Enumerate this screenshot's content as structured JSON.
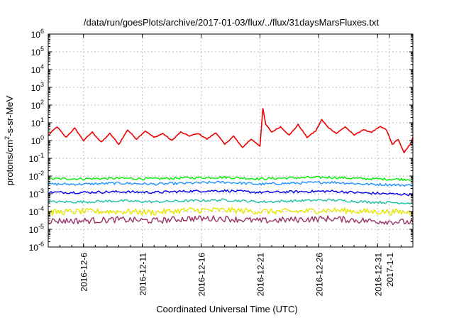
{
  "chart_data": {
    "type": "line",
    "title": "/data/run/goesPlots/archive/2017-01-03/flux/../flux/31daysMarsFluxes.txt",
    "xlabel": "Coordinated Universal Time (UTC)",
    "ylabel": {
      "prefix": "protons/cm",
      "sup": "2",
      "suffix": "-s-sr-MeV"
    },
    "x_start": "2016-12-03T00:00",
    "x_end": "2017-01-03T00:00",
    "x_ticks": [
      {
        "date": "2016-12-06",
        "label": "2016-12-6"
      },
      {
        "date": "2016-12-11",
        "label": "2016-12-11"
      },
      {
        "date": "2016-12-16",
        "label": "2016-12-16"
      },
      {
        "date": "2016-12-21",
        "label": "2016-12-21"
      },
      {
        "date": "2016-12-26",
        "label": "2016-12-26"
      },
      {
        "date": "2016-12-31",
        "label": "2016-12-31"
      },
      {
        "date": "2017-01-01",
        "label": "2017-1-1"
      }
    ],
    "y_scale": "log",
    "ylim_exponents": [
      -6,
      6
    ],
    "y_ticks": [
      {
        "base": "10",
        "exp": "-6",
        "value_exp": -6
      },
      {
        "base": "10",
        "exp": "-5",
        "value_exp": -5
      },
      {
        "base": "10",
        "exp": "-4",
        "value_exp": -4
      },
      {
        "base": "10",
        "exp": "-3",
        "value_exp": -3
      },
      {
        "base": "10",
        "exp": "-2",
        "value_exp": -2
      },
      {
        "base": "10",
        "exp": "-1",
        "value_exp": -1
      },
      {
        "base": "10",
        "exp": "0",
        "value_exp": 0
      },
      {
        "base": "10",
        "exp": "1",
        "value_exp": 1
      },
      {
        "base": "10",
        "exp": "2",
        "value_exp": 2
      },
      {
        "base": "10",
        "exp": "3",
        "value_exp": 3
      },
      {
        "base": "10",
        "exp": "4",
        "value_exp": 4
      },
      {
        "base": "10",
        "exp": "5",
        "value_exp": 5
      },
      {
        "base": "10",
        "exp": "6",
        "value_exp": 6
      }
    ],
    "grid": true,
    "series": [
      {
        "color": "#ee0000",
        "x": [
          "2016-12-03T00:00",
          "2016-12-03T18:00",
          "2016-12-04T12:00",
          "2016-12-05T06:00",
          "2016-12-06T00:00",
          "2016-12-06T18:00",
          "2016-12-07T12:00",
          "2016-12-08T06:00",
          "2016-12-09T00:00",
          "2016-12-09T18:00",
          "2016-12-10T12:00",
          "2016-12-11T06:00",
          "2016-12-12T00:00",
          "2016-12-12T18:00",
          "2016-12-13T12:00",
          "2016-12-14T06:00",
          "2016-12-15T00:00",
          "2016-12-15T18:00",
          "2016-12-16T12:00",
          "2016-12-17T06:00",
          "2016-12-18T00:00",
          "2016-12-18T18:00",
          "2016-12-19T12:00",
          "2016-12-20T06:00",
          "2016-12-21T00:00",
          "2016-12-21T06:00",
          "2016-12-21T12:00",
          "2016-12-22T00:00",
          "2016-12-22T18:00",
          "2016-12-23T12:00",
          "2016-12-24T06:00",
          "2016-12-25T00:00",
          "2016-12-25T18:00",
          "2016-12-26T06:00",
          "2016-12-26T18:00",
          "2016-12-27T12:00",
          "2016-12-28T06:00",
          "2016-12-29T00:00",
          "2016-12-29T18:00",
          "2016-12-30T12:00",
          "2016-12-31T06:00",
          "2016-12-31T18:00",
          "2017-01-01T06:00",
          "2017-01-01T18:00",
          "2017-01-02T06:00",
          "2017-01-02T18:00",
          "2017-01-03T00:00"
        ],
        "y": [
          2.0,
          6.0,
          1.5,
          5.0,
          1.0,
          3.0,
          0.8,
          2.5,
          0.6,
          4.0,
          1.2,
          3.5,
          1.5,
          2.5,
          1.0,
          3.0,
          1.8,
          2.5,
          1.2,
          2.8,
          0.6,
          1.8,
          0.4,
          1.2,
          0.5,
          60,
          8.0,
          3.0,
          6.0,
          2.0,
          8.0,
          1.5,
          3.5,
          15,
          6.0,
          2.5,
          6.0,
          2.0,
          4.0,
          3.0,
          6.0,
          4.0,
          0.6,
          1.2,
          0.2,
          0.6,
          1.5
        ]
      },
      {
        "color": "#00ee00",
        "x": [
          "2016-12-03T00:00",
          "2016-12-06T00:00",
          "2016-12-09T00:00",
          "2016-12-12T00:00",
          "2016-12-15T00:00",
          "2016-12-18T00:00",
          "2016-12-21T00:00",
          "2016-12-24T00:00",
          "2016-12-27T00:00",
          "2016-12-30T00:00",
          "2017-01-03T00:00"
        ],
        "y": [
          0.007,
          0.007,
          0.0075,
          0.007,
          0.008,
          0.0085,
          0.007,
          0.008,
          0.0085,
          0.007,
          0.0065
        ]
      },
      {
        "color": "#1e90ff",
        "x": [
          "2016-12-03T00:00",
          "2016-12-06T00:00",
          "2016-12-09T00:00",
          "2016-12-12T00:00",
          "2016-12-15T00:00",
          "2016-12-18T00:00",
          "2016-12-21T00:00",
          "2016-12-24T00:00",
          "2016-12-27T00:00",
          "2016-12-30T00:00",
          "2017-01-03T00:00"
        ],
        "y": [
          0.0035,
          0.0035,
          0.004,
          0.0035,
          0.004,
          0.0045,
          0.0035,
          0.004,
          0.0045,
          0.0035,
          0.003
        ]
      },
      {
        "color": "#0000ee",
        "x": [
          "2016-12-03T00:00",
          "2016-12-06T00:00",
          "2016-12-09T00:00",
          "2016-12-12T00:00",
          "2016-12-15T00:00",
          "2016-12-18T00:00",
          "2016-12-21T00:00",
          "2016-12-24T00:00",
          "2016-12-27T00:00",
          "2016-12-30T00:00",
          "2017-01-03T00:00"
        ],
        "y": [
          0.0012,
          0.0012,
          0.0013,
          0.0012,
          0.0014,
          0.0015,
          0.0012,
          0.0013,
          0.0014,
          0.0011,
          0.0009
        ]
      },
      {
        "color": "#20c0a0",
        "x": [
          "2016-12-03T00:00",
          "2016-12-06T00:00",
          "2016-12-09T00:00",
          "2016-12-12T00:00",
          "2016-12-15T00:00",
          "2016-12-18T00:00",
          "2016-12-21T00:00",
          "2016-12-24T00:00",
          "2016-12-27T00:00",
          "2016-12-30T00:00",
          "2017-01-03T00:00"
        ],
        "y": [
          0.00035,
          0.00035,
          0.0004,
          0.00035,
          0.0004,
          0.00045,
          0.00035,
          0.0004,
          0.00045,
          0.00035,
          0.0003
        ]
      },
      {
        "color": "#e8e800",
        "x": [
          "2016-12-03T00:00",
          "2016-12-06T00:00",
          "2016-12-09T00:00",
          "2016-12-12T00:00",
          "2016-12-15T00:00",
          "2016-12-18T00:00",
          "2016-12-21T00:00",
          "2016-12-24T00:00",
          "2016-12-27T00:00",
          "2016-12-30T00:00",
          "2017-01-03T00:00"
        ],
        "y": [
          9e-05,
          0.0001,
          0.0001,
          9e-05,
          0.00012,
          0.00012,
          0.0001,
          0.0001,
          0.00012,
          0.0001,
          9e-05
        ]
      },
      {
        "color": "#993366",
        "x": [
          "2016-12-03T00:00",
          "2016-12-06T00:00",
          "2016-12-09T00:00",
          "2016-12-12T00:00",
          "2016-12-15T00:00",
          "2016-12-18T00:00",
          "2016-12-21T00:00",
          "2016-12-24T00:00",
          "2016-12-27T00:00",
          "2016-12-30T00:00",
          "2017-01-03T00:00"
        ],
        "y": [
          3e-05,
          3e-05,
          3.5e-05,
          3e-05,
          4e-05,
          4e-05,
          3e-05,
          3.5e-05,
          4e-05,
          3e-05,
          2.5e-05
        ]
      }
    ]
  }
}
